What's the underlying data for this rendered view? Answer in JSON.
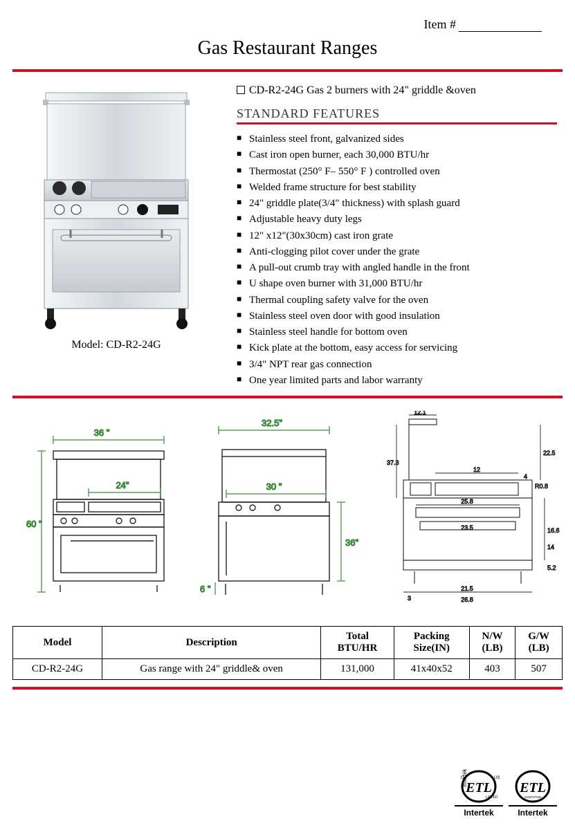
{
  "header": {
    "item_label": "Item #"
  },
  "title": "Gas Restaurant Ranges",
  "photo": {
    "caption": "Model: CD-R2-24G"
  },
  "model_select": {
    "text": "CD-R2-24G Gas 2 burners with 24\" griddle &oven"
  },
  "features": {
    "heading": "STANDARD FEATURES",
    "items": [
      "Stainless steel front, galvanized sides",
      "Cast iron open burner, each 30,000 BTU/hr",
      "Thermostat (250° F– 550° F ) controlled oven",
      "Welded frame structure for best stability",
      "24\" griddle plate(3/4\" thickness) with splash guard",
      "Adjustable heavy duty legs",
      "12\" x12\"(30x30cm) cast iron grate",
      "Anti-clogging pilot cover under the grate",
      "A pull-out crumb tray with angled handle in the front",
      "U shape oven burner with 31,000 BTU/hr",
      "Thermal coupling safety valve for the oven",
      "Stainless steel oven door with good insulation",
      "Stainless steel handle for bottom oven",
      "Kick plate at the bottom, easy access for servicing",
      "3/4\" NPT rear gas connection",
      "One year limited parts and labor warranty"
    ]
  },
  "diagrams": {
    "front": {
      "w": "36 \"",
      "h": "60 \"",
      "griddle_w": "24\""
    },
    "side": {
      "top_d": "32.5\"",
      "d": "30  \"",
      "h": "36\"",
      "leg": "6  \""
    },
    "top": {
      "a": "12.1",
      "b": "22.5",
      "c": "37.3",
      "d": "12",
      "e": "4",
      "f": "R0.8",
      "g": "25.8",
      "h": "23.5",
      "i": "16.6",
      "j": "14",
      "k": "5.2",
      "l": "3",
      "m": "21.5",
      "n": "26.8"
    },
    "colors": {
      "dim_line": "#3a8a3a",
      "outline": "#222222",
      "fill": "#ffffff"
    }
  },
  "spec_table": {
    "columns": [
      "Model",
      "Description",
      "Total BTU/HR",
      "Packing Size(IN)",
      "N/W (LB)",
      "G/W (LB)"
    ],
    "rows": [
      [
        "CD-R2-24G",
        "Gas range with 24\" griddle& oven",
        "131,000",
        "41x40x52",
        "403",
        "507"
      ]
    ]
  },
  "cert": {
    "intertek": "Intertek",
    "listed": "LISTED",
    "sanitation": "SANITATION"
  }
}
